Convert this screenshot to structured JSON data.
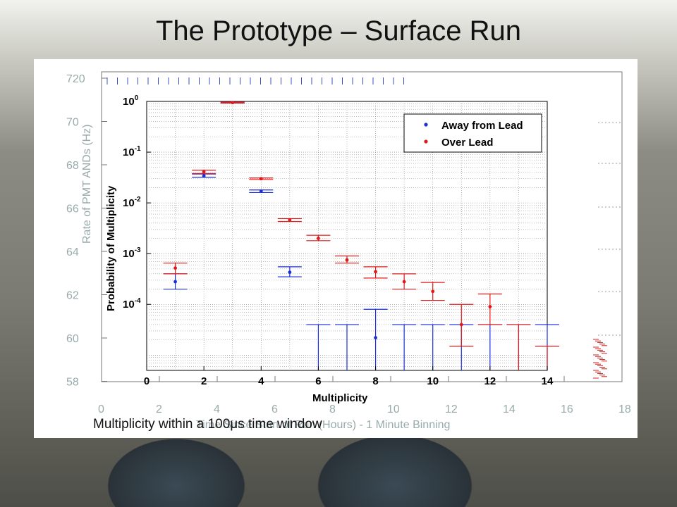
{
  "slide": {
    "title": "The Prototype – Surface Run",
    "caption": "Multiplicity within a 100μs time window"
  },
  "background_plot": {
    "ylabel": "Rate of PMT ANDs (Hz)",
    "xlabel": "Time Since Start of Run (Hours) - 1 Minute Binning",
    "yticks": [
      "720",
      "70",
      "68",
      "66",
      "64",
      "62",
      "60",
      "58"
    ],
    "xticks": [
      "0",
      "2",
      "4",
      "6",
      "8",
      "10",
      "12",
      "14",
      "16",
      "18"
    ]
  },
  "chart_data": {
    "type": "scatter",
    "xlabel": "Multiplicity",
    "ylabel": "Probability of Multiplicity",
    "yscale": "log",
    "xlim": [
      0,
      14
    ],
    "ylim": [
      5e-06,
      1
    ],
    "grid": true,
    "legend_position": "top-right",
    "xticks": [
      "0",
      "2",
      "4",
      "6",
      "8",
      "10",
      "12",
      "14"
    ],
    "yticks": [
      {
        "base": "10",
        "exp": "0",
        "value": 1
      },
      {
        "base": "10",
        "exp": "-1",
        "value": 0.1
      },
      {
        "base": "10",
        "exp": "-2",
        "value": 0.01
      },
      {
        "base": "10",
        "exp": "-3",
        "value": 0.001
      },
      {
        "base": "10",
        "exp": "-4",
        "value": 0.0001
      }
    ],
    "series": [
      {
        "name": "Away from Lead",
        "color": "#1a2fd6",
        "points": [
          {
            "x": 1,
            "y": 0.00028,
            "lo": 0.0002,
            "hi": 0.0004
          },
          {
            "x": 2,
            "y": 0.034,
            "lo": 0.032,
            "hi": 0.037
          },
          {
            "x": 3,
            "y": 0.95,
            "lo": 0.93,
            "hi": 0.97
          },
          {
            "x": 4,
            "y": 0.017,
            "lo": 0.016,
            "hi": 0.018
          },
          {
            "x": 5,
            "y": 0.00043,
            "lo": 0.00035,
            "hi": 0.00055
          },
          {
            "x": 6,
            "y": null,
            "lo": null,
            "hi": 4e-05
          },
          {
            "x": 7,
            "y": null,
            "lo": null,
            "hi": 4e-05
          },
          {
            "x": 8,
            "y": 2.2e-05,
            "lo": null,
            "hi": 8e-05
          },
          {
            "x": 9,
            "y": null,
            "lo": null,
            "hi": 4e-05
          },
          {
            "x": 10,
            "y": null,
            "lo": null,
            "hi": 4e-05
          },
          {
            "x": 11,
            "y": null,
            "lo": null,
            "hi": 4e-05
          },
          {
            "x": 12,
            "y": null,
            "lo": null,
            "hi": 4e-05
          },
          {
            "x": 13,
            "y": null,
            "lo": null,
            "hi": 4e-05
          },
          {
            "x": 14,
            "y": null,
            "lo": null,
            "hi": 4e-05
          }
        ]
      },
      {
        "name": "Over Lead",
        "color": "#e01818",
        "points": [
          {
            "x": 1,
            "y": 0.00052,
            "lo": 0.0004,
            "hi": 0.00065
          },
          {
            "x": 2,
            "y": 0.041,
            "lo": 0.038,
            "hi": 0.044
          },
          {
            "x": 3,
            "y": 0.95,
            "lo": 0.93,
            "hi": 0.97
          },
          {
            "x": 4,
            "y": 0.03,
            "lo": 0.029,
            "hi": 0.031
          },
          {
            "x": 5,
            "y": 0.0046,
            "lo": 0.0043,
            "hi": 0.0049
          },
          {
            "x": 6,
            "y": 0.002,
            "lo": 0.0018,
            "hi": 0.0023
          },
          {
            "x": 7,
            "y": 0.00075,
            "lo": 0.00065,
            "hi": 0.0009
          },
          {
            "x": 8,
            "y": 0.00044,
            "lo": 0.00033,
            "hi": 0.00055
          },
          {
            "x": 9,
            "y": 0.00028,
            "lo": 0.0002,
            "hi": 0.0004
          },
          {
            "x": 10,
            "y": 0.00018,
            "lo": 0.00012,
            "hi": 0.00027
          },
          {
            "x": 11,
            "y": 4e-05,
            "lo": 1.5e-05,
            "hi": 0.0001
          },
          {
            "x": 12,
            "y": 9e-05,
            "lo": 4e-05,
            "hi": 0.00016
          },
          {
            "x": 13,
            "y": null,
            "lo": null,
            "hi": 4e-05
          },
          {
            "x": 14,
            "y": null,
            "lo": null,
            "hi": 1.5e-05
          }
        ]
      }
    ]
  }
}
